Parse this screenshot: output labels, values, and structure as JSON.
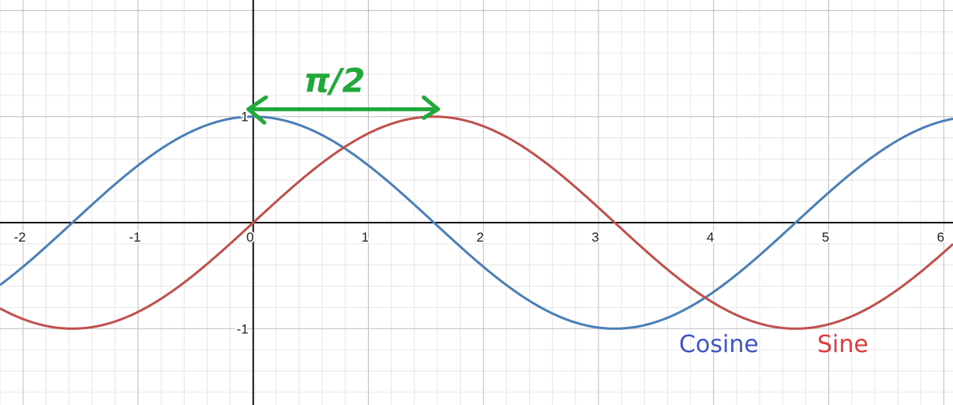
{
  "chart_data": {
    "type": "line",
    "title": "",
    "xlabel": "",
    "ylabel": "",
    "xlim": [
      -2.2,
      6.08
    ],
    "ylim": [
      -1.72,
      2.1
    ],
    "grid": true,
    "x_ticks": [
      -2,
      -1,
      0,
      1,
      2,
      3,
      4,
      5,
      6
    ],
    "x_tick_labels": [
      "-2",
      "-1",
      "0",
      "1",
      "2",
      "3",
      "4",
      "5",
      "6"
    ],
    "y_ticks": [
      1,
      -1
    ],
    "y_tick_labels": [
      "1",
      "-1"
    ],
    "series": [
      {
        "name": "Cosine",
        "function": "cos(x)",
        "color": "#4a7fb8"
      },
      {
        "name": "Sine",
        "function": "sin(x)",
        "color": "#c0504d"
      }
    ],
    "legend": [
      {
        "label": "Cosine",
        "color": "#3f57c4",
        "x": 3.7,
        "y": -1.22
      },
      {
        "label": "Sine",
        "color": "#e33a3a",
        "x": 4.9,
        "y": -1.22
      }
    ],
    "annotations": [
      {
        "type": "double-arrow",
        "text": "π/2",
        "color": "#21a83a",
        "from": [
          0,
          1.07
        ],
        "to": [
          1.66,
          1.07
        ]
      }
    ]
  }
}
